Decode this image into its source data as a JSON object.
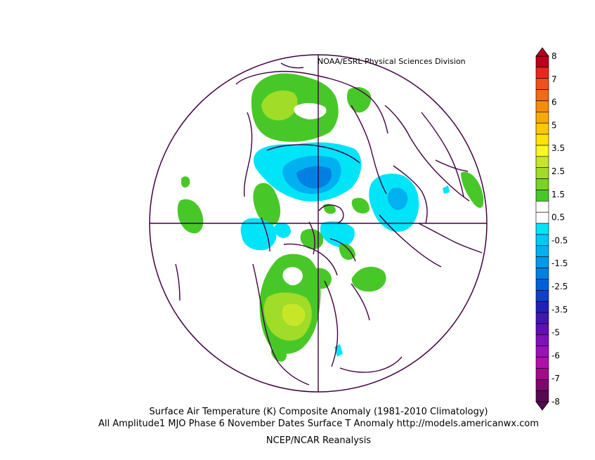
{
  "credit": "NOAA/ESRL Physical Sciences Division",
  "title_line1": "Surface Air Temperature (K) Composite Anomaly (1981-2010 Climatology)",
  "title_line2": "All Amplitude1 MJO Phase 6 November Dates Surface T Anomaly http://models.americanwx.com",
  "title_line3": "NCEP/NCAR Reanalysis",
  "projection": "polar stereographic (Northern Hemisphere)",
  "colorbar": {
    "labels": [
      "8",
      "7",
      "6",
      "5",
      "3.5",
      "2.5",
      "1.5",
      "0.5",
      "-0.5",
      "-1.5",
      "-2.5",
      "-3.5",
      "-5",
      "-6",
      "-7",
      "-8"
    ],
    "colors": [
      "#b8001c",
      "#e8281c",
      "#f0501c",
      "#f06a18",
      "#f48c10",
      "#f8a808",
      "#fcc800",
      "#fce400",
      "#f8f820",
      "#c8e628",
      "#a0dc28",
      "#7cd228",
      "#48c828",
      "#ffffff",
      "#ffffff",
      "#00e4f8",
      "#00c8f8",
      "#00b0f0",
      "#0098e8",
      "#0080e0",
      "#0060d8",
      "#1040c8",
      "#2020b8",
      "#4018b0",
      "#6010b0",
      "#8010b8",
      "#9c10b8",
      "#b010a8",
      "#a00c8c",
      "#7c0a6c",
      "#580850"
    ]
  },
  "colors": {
    "coastline": "#400040",
    "positive_light": "#48c828",
    "positive_mid": "#a0dc28",
    "positive_strong": "#fcc800",
    "negative_light": "#00e4f8",
    "negative_mid": "#00b0f0",
    "negative_strong": "#0080e0"
  }
}
